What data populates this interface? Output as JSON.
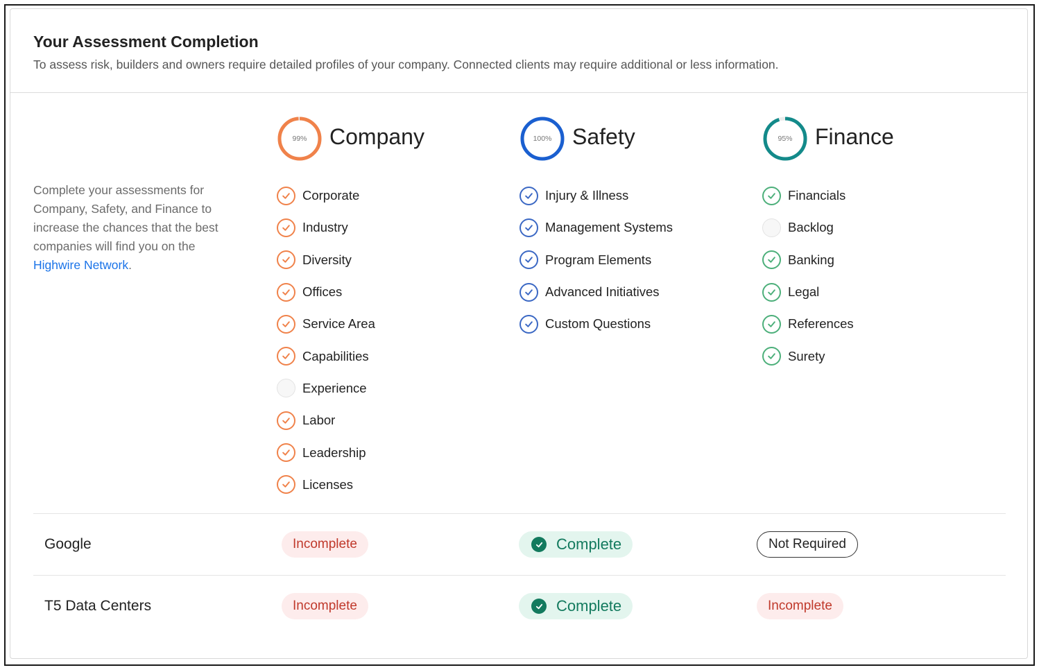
{
  "header": {
    "title": "Your Assessment Completion",
    "subtitle": "To assess risk, builders and owners require detailed profiles of your company. Connected clients may require additional or less information."
  },
  "intro": {
    "text": "Complete your assessments for Company, Safety, and Finance to increase the chances that the best companies will find you on the ",
    "link_text": "Highwire Network",
    "suffix": "."
  },
  "columns": [
    {
      "title": "Company",
      "percent_label": "99%",
      "percent": 99,
      "color": "#f0824a",
      "items": [
        {
          "label": "Corporate",
          "done": true
        },
        {
          "label": "Industry",
          "done": true
        },
        {
          "label": "Diversity",
          "done": true
        },
        {
          "label": "Offices",
          "done": true
        },
        {
          "label": "Service Area",
          "done": true
        },
        {
          "label": "Capabilities",
          "done": true
        },
        {
          "label": "Experience",
          "done": false
        },
        {
          "label": "Labor",
          "done": true
        },
        {
          "label": "Leadership",
          "done": true
        },
        {
          "label": "Licenses",
          "done": true
        }
      ]
    },
    {
      "title": "Safety",
      "percent_label": "100%",
      "percent": 100,
      "color": "#1a5fd0",
      "check_color": "#3b68c4",
      "items": [
        {
          "label": "Injury & Illness",
          "done": true
        },
        {
          "label": "Management Systems",
          "done": true
        },
        {
          "label": "Program Elements",
          "done": true
        },
        {
          "label": "Advanced Initiatives",
          "done": true
        },
        {
          "label": "Custom Questions",
          "done": true
        }
      ]
    },
    {
      "title": "Finance",
      "percent_label": "95%",
      "percent": 95,
      "color": "#138a8a",
      "check_color": "#4caf7a",
      "items": [
        {
          "label": "Financials",
          "done": true
        },
        {
          "label": "Backlog",
          "done": false
        },
        {
          "label": "Banking",
          "done": true
        },
        {
          "label": "Legal",
          "done": true
        },
        {
          "label": "References",
          "done": true
        },
        {
          "label": "Surety",
          "done": true
        }
      ]
    }
  ],
  "clients": [
    {
      "name": "Google",
      "statuses": [
        {
          "label": "Incomplete",
          "kind": "incomplete"
        },
        {
          "label": "Complete",
          "kind": "complete"
        },
        {
          "label": "Not Required",
          "kind": "not-required"
        }
      ]
    },
    {
      "name": "T5 Data Centers",
      "statuses": [
        {
          "label": "Incomplete",
          "kind": "incomplete"
        },
        {
          "label": "Complete",
          "kind": "complete"
        },
        {
          "label": "Incomplete",
          "kind": "incomplete"
        }
      ]
    }
  ]
}
